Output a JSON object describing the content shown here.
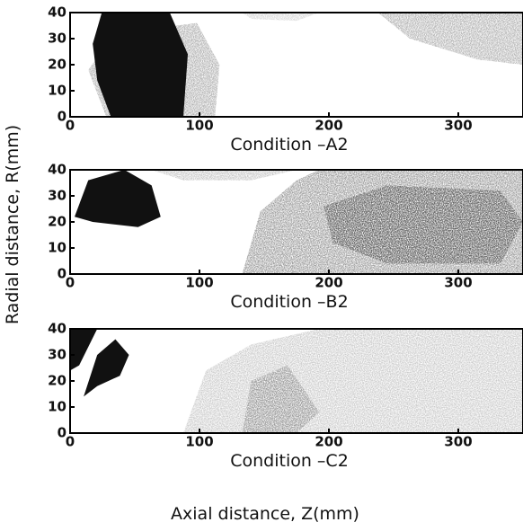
{
  "chart_data": [
    {
      "type": "density",
      "xlabel": "Condition –A2",
      "xlim": [
        0,
        350
      ],
      "ylim": [
        0,
        40
      ],
      "xticks": [
        0,
        100,
        200,
        300
      ],
      "yticks": [
        0,
        10,
        20,
        30,
        40
      ]
    },
    {
      "type": "density",
      "xlabel": "Condition –B2",
      "xlim": [
        0,
        350
      ],
      "ylim": [
        0,
        40
      ],
      "xticks": [
        0,
        100,
        200,
        300
      ],
      "yticks": [
        0,
        10,
        20,
        30,
        40
      ]
    },
    {
      "type": "density",
      "xlabel": "Condition –C2",
      "xlim": [
        0,
        350
      ],
      "ylim": [
        0,
        40
      ],
      "xticks": [
        0,
        100,
        200,
        300
      ],
      "yticks": [
        0,
        10,
        20,
        30,
        40
      ]
    }
  ],
  "xlabel": "Axial distance, Z(mm)",
  "ylabel": "Radial distance, R(mm)"
}
